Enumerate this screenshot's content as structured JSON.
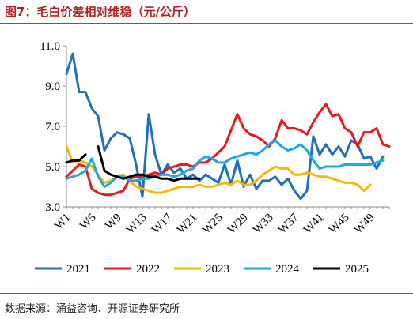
{
  "figure": {
    "title": "图7：毛白价差相对维稳（元/公斤）",
    "source": "数据来源：涌益咨询、开源证券研究所"
  },
  "chart_data": {
    "type": "line",
    "x": [
      "W1",
      "W2",
      "W3",
      "W4",
      "W5",
      "W6",
      "W7",
      "W8",
      "W9",
      "W10",
      "W11",
      "W12",
      "W13",
      "W14",
      "W15",
      "W16",
      "W17",
      "W18",
      "W19",
      "W20",
      "W21",
      "W22",
      "W23",
      "W24",
      "W25",
      "W26",
      "W27",
      "W28",
      "W29",
      "W30",
      "W31",
      "W32",
      "W33",
      "W34",
      "W35",
      "W36",
      "W37",
      "W38",
      "W39",
      "W40",
      "W41",
      "W42",
      "W43",
      "W44",
      "W45",
      "W46",
      "W47",
      "W48",
      "W49",
      "W50",
      "W51",
      "W52"
    ],
    "tick_labels": [
      "W1",
      "W5",
      "W9",
      "W13",
      "W17",
      "W21",
      "W25",
      "W29",
      "W33",
      "W37",
      "W41",
      "W45",
      "W49"
    ],
    "ylim": [
      3.0,
      11.0
    ],
    "yticks": [
      "3.0",
      "5.0",
      "7.0",
      "9.0",
      "11.0"
    ],
    "legend_position": "bottom",
    "series": [
      {
        "name": "2021",
        "color": "#1f6fbf",
        "values": [
          9.6,
          10.6,
          8.7,
          8.7,
          7.9,
          7.5,
          5.8,
          6.4,
          6.7,
          6.6,
          6.4,
          5.1,
          3.5,
          7.6,
          5.6,
          4.6,
          5.1,
          4.7,
          4.9,
          4.4,
          4.6,
          4.3,
          4.6,
          4.4,
          4.2,
          5.1,
          4.1,
          5.3,
          4.0,
          4.6,
          3.9,
          4.3,
          4.3,
          4.5,
          4.1,
          4.4,
          3.8,
          3.4,
          3.8,
          6.5,
          5.6,
          6.1,
          5.6,
          6.0,
          5.5,
          6.3,
          6.1,
          5.4,
          5.5,
          4.9,
          5.5,
          null
        ]
      },
      {
        "name": "2022",
        "color": "#e8191c",
        "values": [
          4.5,
          4.8,
          5.1,
          5.0,
          3.9,
          3.7,
          3.6,
          3.6,
          3.7,
          3.8,
          4.4,
          4.5,
          4.5,
          4.6,
          4.7,
          4.6,
          4.9,
          5.0,
          5.1,
          5.1,
          5.0,
          5.2,
          5.2,
          5.4,
          5.7,
          6.0,
          6.8,
          7.6,
          6.9,
          6.6,
          6.5,
          6.3,
          6.0,
          6.4,
          7.3,
          6.9,
          6.9,
          6.8,
          6.6,
          7.2,
          7.7,
          8.1,
          7.5,
          7.6,
          6.9,
          6.7,
          6.0,
          6.7,
          6.7,
          6.9,
          6.1,
          6.0
        ]
      },
      {
        "name": "2023",
        "color": "#f5b800",
        "values": [
          6.0,
          5.2,
          5.3,
          5.2,
          5.0,
          4.6,
          4.2,
          4.3,
          4.5,
          4.6,
          4.3,
          4.0,
          3.9,
          3.8,
          3.7,
          3.7,
          3.8,
          3.9,
          4.0,
          4.0,
          4.0,
          4.1,
          4.0,
          4.0,
          4.1,
          4.2,
          4.1,
          4.3,
          4.1,
          4.1,
          4.3,
          4.6,
          4.8,
          5.0,
          4.9,
          4.9,
          4.6,
          4.6,
          4.7,
          4.6,
          4.5,
          4.5,
          4.4,
          4.3,
          4.2,
          4.2,
          4.1,
          3.8,
          4.1,
          null,
          null,
          null
        ]
      },
      {
        "name": "2024",
        "color": "#1ea7e8",
        "values": [
          4.4,
          4.5,
          4.6,
          4.8,
          5.4,
          4.5,
          4.0,
          4.2,
          4.5,
          4.5,
          4.3,
          4.3,
          4.4,
          4.4,
          4.5,
          4.6,
          4.6,
          4.5,
          4.6,
          4.8,
          4.9,
          5.3,
          5.5,
          5.4,
          5.2,
          5.2,
          5.4,
          5.5,
          5.6,
          5.7,
          5.6,
          5.8,
          6.1,
          6.3,
          6.0,
          5.8,
          5.9,
          6.1,
          5.8,
          5.3,
          4.9,
          5.0,
          5.0,
          5.0,
          5.1,
          5.1,
          5.1,
          5.1,
          5.1,
          5.2,
          5.3,
          null
        ]
      },
      {
        "name": "2025",
        "color": "#000000",
        "values": [
          5.2,
          5.3,
          5.3,
          5.6,
          null,
          6.0,
          4.8,
          4.6,
          4.5,
          4.4,
          4.5,
          4.6,
          4.6,
          4.5,
          4.5,
          4.4,
          4.4,
          4.3,
          4.4,
          4.4,
          4.4,
          4.4,
          null,
          null,
          null,
          null,
          null,
          null,
          null,
          null,
          null,
          null,
          null,
          null,
          null,
          null,
          null,
          null,
          null,
          null,
          null,
          null,
          null,
          null,
          null,
          null,
          null,
          null,
          null,
          null,
          null,
          null
        ]
      }
    ]
  }
}
